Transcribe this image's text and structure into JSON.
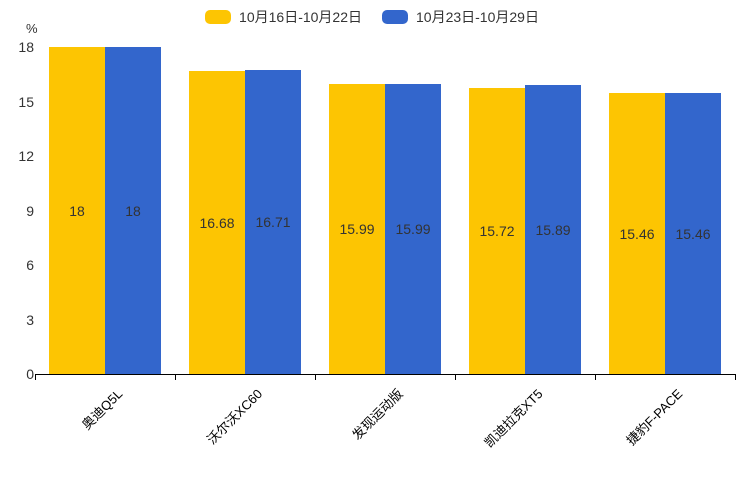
{
  "chart_data": {
    "type": "bar",
    "title": "",
    "unit_label": "%",
    "categories": [
      "奥迪Q5L",
      "沃尔沃XC60",
      "发现运动版",
      "凯迪拉克XT5",
      "捷豹F-PACE"
    ],
    "series": [
      {
        "name": "10月16日-10月22日",
        "color": "#fdc502",
        "values": [
          18,
          16.68,
          15.99,
          15.72,
          15.46
        ]
      },
      {
        "name": "10月23日-10月29日",
        "color": "#3366cc",
        "values": [
          18,
          16.71,
          15.99,
          15.89,
          15.46
        ]
      }
    ],
    "y_ticks": [
      0,
      3,
      6,
      9,
      12,
      15,
      18
    ],
    "ylim": [
      0,
      18
    ],
    "legend_position": "top-center",
    "grid": false,
    "value_labels": "inside-middle",
    "x_label_rotation": 45
  },
  "colors": {
    "axis": "#000000",
    "text": "#333333",
    "background": "#ffffff"
  }
}
